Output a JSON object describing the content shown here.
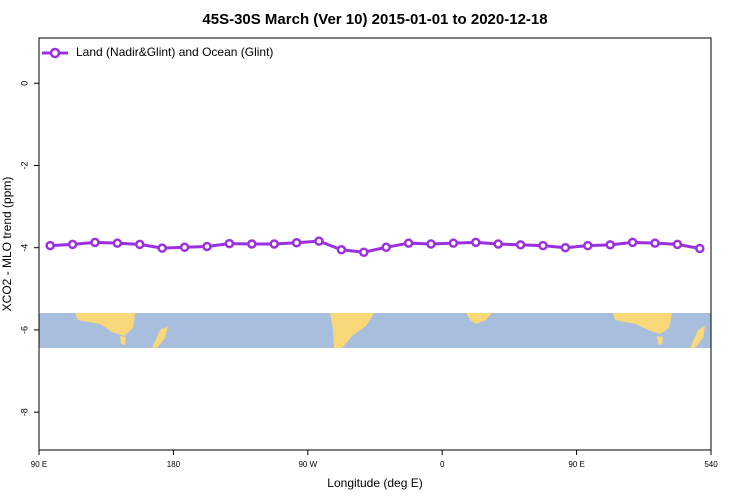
{
  "chart_data": {
    "type": "line",
    "title": "45S-30S March (Ver 10)   2015-01-01 to 2020-12-18",
    "x_label": "Longitude (deg E)",
    "y_label": "XCO2 - MLO trend (ppm)",
    "x": [
      97.5,
      112.5,
      127.5,
      142.5,
      157.5,
      172.5,
      187.5,
      202.5,
      217.5,
      232.5,
      247.5,
      262.5,
      277.5,
      292.5,
      307.5,
      322.5,
      337.5,
      352.5,
      367.5,
      382.5,
      397.5,
      412.5,
      427.5,
      442.5,
      457.5,
      472.5,
      487.5,
      502.5,
      517.5,
      532.5
    ],
    "series": [
      {
        "name": "Land (Nadir&Glint) and Ocean (Glint)",
        "color": "#9b30e0",
        "values": [
          -3.95,
          -3.92,
          -3.87,
          -3.89,
          -3.92,
          -4.01,
          -3.99,
          -3.97,
          -3.9,
          -3.91,
          -3.91,
          -3.88,
          -3.84,
          -4.05,
          -4.11,
          -3.99,
          -3.89,
          -3.91,
          -3.89,
          -3.87,
          -3.91,
          -3.93,
          -3.95,
          -4.0,
          -3.95,
          -3.93,
          -3.87,
          -3.89,
          -3.92,
          -4.02
        ]
      }
    ],
    "xlim": [
      90,
      540
    ],
    "xticks": [
      {
        "value": 90,
        "label": "90 E"
      },
      180,
      {
        "value": 270,
        "label": "90 W"
      },
      {
        "value": 360,
        "label": "0"
      },
      {
        "value": 450,
        "label": "90 E"
      },
      540
    ],
    "ylim": [
      -8.92,
      1.1
    ],
    "yticks": [
      0,
      -2,
      -4,
      -6,
      -8
    ],
    "legend": "top-left"
  }
}
